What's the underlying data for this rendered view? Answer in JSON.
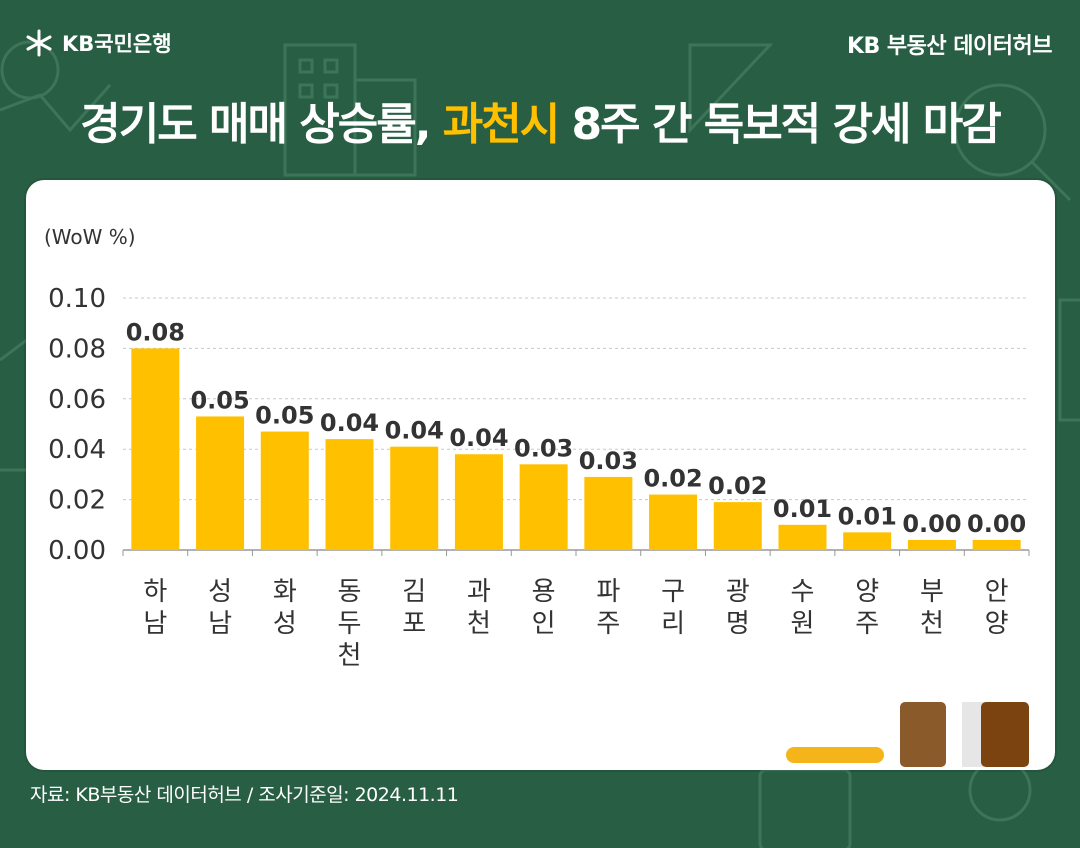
{
  "header": {
    "bank_logo_text": "KB국민은행",
    "hub_text": "KB 부동산  데이터허브"
  },
  "title": {
    "part1": "경기도 매매 상승률, ",
    "highlight": "과천시",
    "part2": " 8주 간 독보적 강세 마감"
  },
  "source": "자료: KB부동산 데이터허브 / 조사기준일: 2024.11.11",
  "colors": {
    "background": "#285e44",
    "bar": "#ffc000",
    "highlight": "#ffc000"
  },
  "chart_data": {
    "type": "bar",
    "unit_label": "(WoW %)",
    "categories": [
      "하남",
      "성남",
      "화성",
      "동두천",
      "김포",
      "과천",
      "용인",
      "파주",
      "구리",
      "광명",
      "수원",
      "양주",
      "부천",
      "안양"
    ],
    "values": [
      0.08,
      0.053,
      0.047,
      0.044,
      0.041,
      0.038,
      0.034,
      0.029,
      0.022,
      0.019,
      0.01,
      0.007,
      0.004,
      0.004
    ],
    "data_labels": [
      "0.08",
      "0.05",
      "0.05",
      "0.04",
      "0.04",
      "0.04",
      "0.03",
      "0.03",
      "0.02",
      "0.02",
      "0.01",
      "0.01",
      "0.00",
      "0.00"
    ],
    "yticks": [
      "0.00",
      "0.02",
      "0.04",
      "0.06",
      "0.08",
      "0.10"
    ],
    "ylim": [
      0,
      0.1
    ],
    "grid": true
  }
}
